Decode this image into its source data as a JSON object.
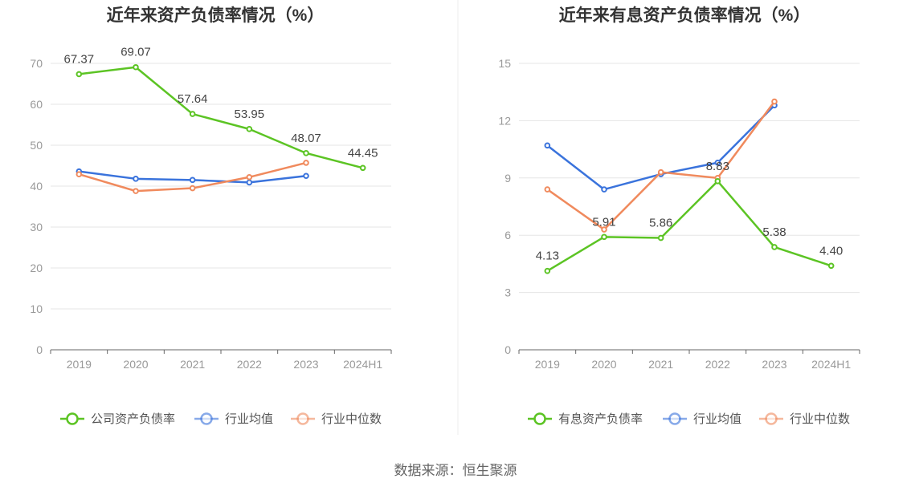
{
  "source": "数据来源：恒生聚源",
  "colors": {
    "company": "#5cc424",
    "avg": "#3a73dc",
    "median": "#f08a5d"
  },
  "chart_data": [
    {
      "type": "line",
      "title": "近年来资产负债率情况（%）",
      "categories": [
        "2019",
        "2020",
        "2021",
        "2022",
        "2023",
        "2024H1"
      ],
      "ylim": [
        0,
        70
      ],
      "yticks": [
        0,
        10,
        20,
        30,
        40,
        50,
        60,
        70
      ],
      "grid": true,
      "legend_position": "bottom",
      "series": [
        {
          "name": "公司资产负债率",
          "values": [
            67.37,
            69.07,
            57.64,
            53.95,
            48.07,
            44.45
          ],
          "labels": [
            "67.37",
            "69.07",
            "57.64",
            "53.95",
            "48.07",
            "44.45"
          ]
        },
        {
          "name": "行业均值",
          "values": [
            43.6,
            41.8,
            41.5,
            40.9,
            42.5,
            null
          ]
        },
        {
          "name": "行业中位数",
          "values": [
            42.9,
            38.8,
            39.5,
            42.2,
            45.7,
            null
          ]
        }
      ]
    },
    {
      "type": "line",
      "title": "近年来有息资产负债率情况（%）",
      "categories": [
        "2019",
        "2020",
        "2021",
        "2022",
        "2023",
        "2024H1"
      ],
      "ylim": [
        0,
        15
      ],
      "yticks": [
        0,
        3,
        6,
        9,
        12,
        15
      ],
      "grid": true,
      "legend_position": "bottom",
      "series": [
        {
          "name": "有息资产负债率",
          "values": [
            4.13,
            5.91,
            5.86,
            8.83,
            5.38,
            4.4
          ],
          "labels": [
            "4.13",
            "5.91",
            "5.86",
            "8.83",
            "5.38",
            "4.40"
          ]
        },
        {
          "name": "行业均值",
          "values": [
            10.7,
            8.4,
            9.2,
            9.8,
            12.8,
            null
          ]
        },
        {
          "name": "行业中位数",
          "values": [
            8.4,
            6.3,
            9.3,
            9.0,
            13.0,
            null
          ]
        }
      ]
    }
  ]
}
